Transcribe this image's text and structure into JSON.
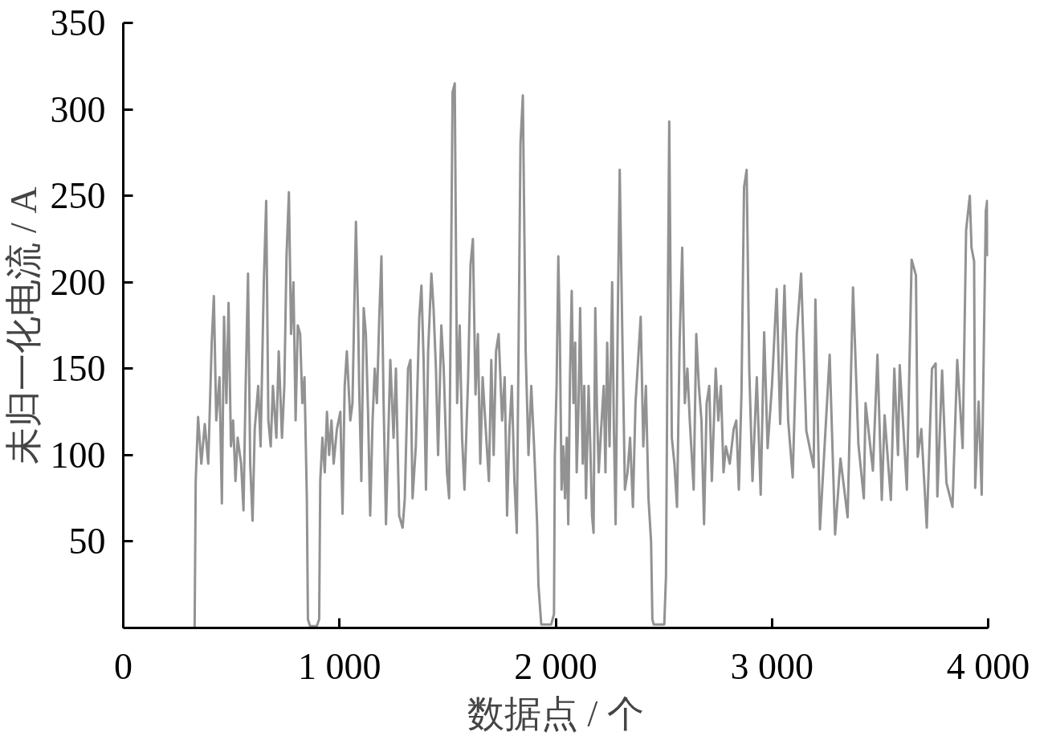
{
  "chart_data": {
    "type": "line",
    "xlabel": "数据点 / 个",
    "ylabel": "未归一化电流 / A",
    "xlim": [
      0,
      4000
    ],
    "ylim": [
      0,
      350
    ],
    "xticks": [
      0,
      {
        "value": 1000,
        "label": "1 000"
      },
      {
        "value": 2000,
        "label": "2 000"
      },
      {
        "value": 3000,
        "label": "3 000"
      },
      {
        "value": 4000,
        "label": "4 000"
      }
    ],
    "yticks": [
      50,
      100,
      150,
      200,
      250,
      300,
      350
    ],
    "x": [
      0,
      330,
      335,
      346,
      361,
      377,
      393,
      409,
      419,
      430,
      445,
      456,
      466,
      477,
      487,
      498,
      508,
      519,
      529,
      545,
      556,
      566,
      577,
      587,
      598,
      608,
      624,
      635,
      650,
      661,
      671,
      682,
      692,
      708,
      719,
      734,
      745,
      755,
      766,
      776,
      787,
      797,
      807,
      818,
      828,
      838,
      849,
      854,
      864,
      895,
      906,
      911,
      921,
      932,
      942,
      952,
      963,
      973,
      988,
      1004,
      1014,
      1024,
      1034,
      1050,
      1060,
      1076,
      1086,
      1091,
      1101,
      1112,
      1122,
      1132,
      1142,
      1153,
      1163,
      1173,
      1184,
      1194,
      1204,
      1215,
      1235,
      1250,
      1261,
      1276,
      1292,
      1302,
      1317,
      1328,
      1338,
      1353,
      1369,
      1379,
      1389,
      1400,
      1410,
      1425,
      1435,
      1446,
      1456,
      1471,
      1482,
      1497,
      1507,
      1523,
      1533,
      1544,
      1556,
      1567,
      1578,
      1595,
      1606,
      1617,
      1629,
      1640,
      1651,
      1662,
      1674,
      1691,
      1702,
      1713,
      1724,
      1736,
      1752,
      1764,
      1775,
      1786,
      1797,
      1809,
      1820,
      1837,
      1848,
      1861,
      1874,
      1887,
      1900,
      1914,
      1920,
      1933,
      1979,
      1992,
      1996,
      2004,
      2012,
      2019,
      2027,
      2035,
      2043,
      2051,
      2058,
      2066,
      2074,
      2082,
      2090,
      2097,
      2105,
      2113,
      2125,
      2132,
      2140,
      2152,
      2160,
      2168,
      2175,
      2183,
      2191,
      2199,
      2210,
      2222,
      2230,
      2238,
      2249,
      2261,
      2269,
      2277,
      2288,
      2296,
      2308,
      2320,
      2332,
      2344,
      2357,
      2369,
      2381,
      2393,
      2405,
      2417,
      2429,
      2441,
      2447,
      2453,
      2502,
      2510,
      2518,
      2525,
      2537,
      2549,
      2561,
      2573,
      2585,
      2597,
      2609,
      2620,
      2638,
      2650,
      2662,
      2674,
      2686,
      2698,
      2710,
      2722,
      2740,
      2752,
      2764,
      2776,
      2787,
      2805,
      2823,
      2835,
      2847,
      2859,
      2871,
      2883,
      2895,
      2910,
      2930,
      2948,
      2964,
      2980,
      3000,
      3022,
      3038,
      3058,
      3075,
      3096,
      3115,
      3135,
      3159,
      3193,
      3201,
      3222,
      3267,
      3292,
      3317,
      3350,
      3375,
      3400,
      3425,
      3433,
      3467,
      3488,
      3508,
      3521,
      3550,
      3566,
      3583,
      3591,
      3624,
      3646,
      3666,
      3674,
      3691,
      3716,
      3740,
      3757,
      3765,
      3787,
      3807,
      3835,
      3857,
      3882,
      3898,
      3915,
      3923,
      3935,
      3940,
      3956,
      3970,
      3989,
      3995,
      3998
    ],
    "series": [
      {
        "color": "#929292",
        "values": [
          0,
          0,
          85,
          122,
          95,
          118,
          95,
          165,
          192,
          120,
          145,
          72,
          180,
          130,
          188,
          105,
          120,
          85,
          110,
          95,
          68,
          140,
          205,
          95,
          62,
          115,
          140,
          105,
          200,
          247,
          120,
          105,
          140,
          110,
          160,
          110,
          140,
          215,
          252,
          170,
          200,
          120,
          175,
          170,
          130,
          145,
          75,
          5,
          1,
          1,
          5,
          85,
          110,
          90,
          125,
          100,
          120,
          95,
          115,
          125,
          66,
          140,
          160,
          120,
          130,
          235,
          180,
          140,
          85,
          185,
          170,
          125,
          65,
          120,
          150,
          130,
          180,
          215,
          130,
          60,
          155,
          110,
          150,
          65,
          58,
          75,
          150,
          155,
          75,
          105,
          180,
          198,
          155,
          80,
          160,
          205,
          185,
          150,
          100,
          175,
          150,
          90,
          75,
          310,
          315,
          130,
          175,
          110,
          80,
          145,
          210,
          225,
          135,
          170,
          95,
          145,
          120,
          85,
          155,
          100,
          160,
          170,
          120,
          145,
          65,
          115,
          140,
          85,
          55,
          280,
          308,
          160,
          100,
          140,
          105,
          60,
          25,
          2,
          2,
          8,
          100,
          140,
          215,
          170,
          80,
          105,
          75,
          110,
          60,
          145,
          195,
          130,
          165,
          90,
          125,
          185,
          95,
          140,
          75,
          140,
          105,
          65,
          55,
          185,
          125,
          90,
          115,
          140,
          90,
          165,
          105,
          200,
          115,
          60,
          190,
          265,
          170,
          80,
          90,
          110,
          70,
          130,
          155,
          180,
          105,
          140,
          75,
          50,
          5,
          2,
          2,
          30,
          180,
          293,
          110,
          95,
          70,
          165,
          220,
          130,
          150,
          120,
          80,
          170,
          140,
          120,
          60,
          130,
          140,
          85,
          150,
          120,
          140,
          90,
          105,
          95,
          115,
          120,
          80,
          135,
          255,
          265,
          150,
          85,
          145,
          77,
          171,
          104,
          140,
          196,
          118,
          198,
          120,
          87,
          170,
          205,
          114,
          93,
          190,
          57,
          158,
          54,
          98,
          64,
          197,
          106,
          75,
          130,
          91,
          158,
          74,
          123,
          74,
          150,
          100,
          152,
          80,
          213,
          204,
          99,
          115,
          58,
          150,
          153,
          76,
          149,
          84,
          70,
          155,
          104,
          230,
          250,
          220,
          212,
          81,
          131,
          77,
          241,
          247,
          215
        ]
      }
    ]
  }
}
